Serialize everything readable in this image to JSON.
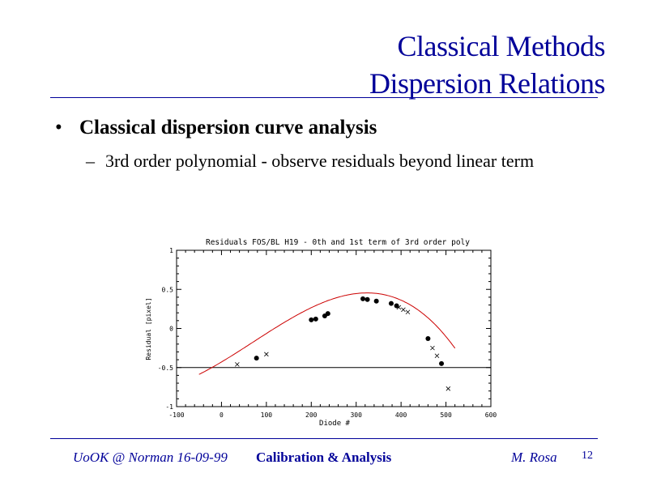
{
  "slide": {
    "title_line1": "Classical Methods",
    "title_line2": "Dispersion Relations",
    "bullet_marker": "•",
    "bullet_text": "Classical dispersion curve analysis",
    "subbullet_marker": "–",
    "subbullet_text": "3rd order polynomial - observe residuals beyond linear term",
    "footer_left": "UoOK @ Norman  16-09-99",
    "footer_center": "Calibration & Analysis",
    "footer_right": "M. Rosa",
    "page_number": "12",
    "accent_color": "#000099"
  },
  "chart_data": {
    "type": "scatter",
    "title": "Residuals FOS/BL H19 - 0th and 1st term of 3rd order poly",
    "xlabel": "Diode #",
    "ylabel": "Residual [pixel]",
    "xlim": [
      -100,
      600
    ],
    "ylim": [
      -1,
      1
    ],
    "x_ticks": [
      -100,
      0,
      100,
      200,
      300,
      400,
      500,
      600
    ],
    "x_tick_labels": [
      "-100",
      "0",
      "100",
      "200",
      "300",
      "400",
      "500",
      "600"
    ],
    "y_ticks": [
      -1,
      -0.5,
      0,
      0.5,
      1
    ],
    "y_tick_labels": [
      "-1",
      "-0.5",
      "0",
      "0.5",
      "1"
    ],
    "reference_line_y": -0.5,
    "curve_color": "#cc0000",
    "series": [
      {
        "marker": "dot",
        "points": [
          [
            78,
            -0.38
          ],
          [
            200,
            0.11
          ],
          [
            210,
            0.12
          ],
          [
            230,
            0.16
          ],
          [
            237,
            0.19
          ],
          [
            315,
            0.38
          ],
          [
            325,
            0.37
          ],
          [
            345,
            0.35
          ],
          [
            378,
            0.32
          ],
          [
            390,
            0.29
          ],
          [
            460,
            -0.13
          ],
          [
            490,
            -0.45
          ]
        ]
      },
      {
        "marker": "cross",
        "points": [
          [
            35,
            -0.46
          ],
          [
            100,
            -0.33
          ],
          [
            395,
            0.27
          ],
          [
            405,
            0.24
          ],
          [
            415,
            0.21
          ],
          [
            470,
            -0.25
          ],
          [
            480,
            -0.35
          ],
          [
            505,
            -0.77
          ]
        ]
      }
    ],
    "fit_curve": {
      "coefficients": [
        -0.429,
        0.003425,
        4.1e-06,
        -1.93e-08
      ],
      "x_range": [
        -50,
        520
      ]
    }
  }
}
